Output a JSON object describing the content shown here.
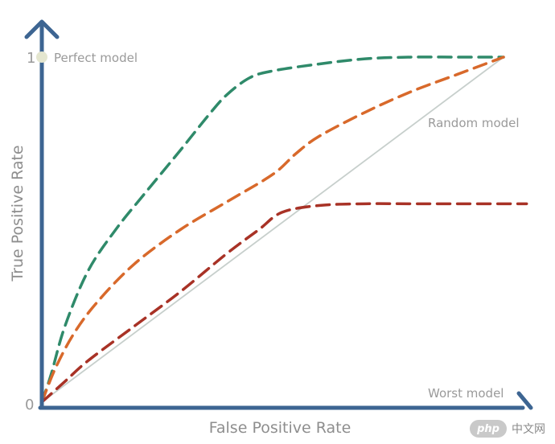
{
  "chart_data": {
    "type": "line",
    "xlabel": "False Positive Rate",
    "ylabel": "True Positive Rate",
    "xlim": [
      0,
      1
    ],
    "ylim": [
      0,
      1
    ],
    "y_ticks": [
      {
        "value": 0,
        "label": "0"
      },
      {
        "value": 1,
        "label": "1"
      }
    ],
    "annotations": {
      "perfect": {
        "label": "Perfect model",
        "x": 0,
        "y": 1
      },
      "random": {
        "label": "Random model",
        "x": 0.82,
        "y": 0.82
      },
      "worst": {
        "label": "Worst model",
        "x": 1,
        "y": 0
      }
    },
    "grid": false,
    "legend": "none",
    "series": [
      {
        "color": "#2f8a6a",
        "style": "dashed",
        "x": [
          0,
          0.02,
          0.05,
          0.1,
          0.16,
          0.22,
          0.3,
          0.36,
          0.4,
          0.45,
          0.5,
          0.6,
          0.7,
          0.8,
          0.9,
          1.0
        ],
        "y": [
          0,
          0.08,
          0.22,
          0.38,
          0.5,
          0.6,
          0.73,
          0.83,
          0.89,
          0.94,
          0.96,
          0.98,
          0.995,
          1.0,
          1.0,
          1.0
        ]
      },
      {
        "color": "#d8692b",
        "style": "dashed",
        "x": [
          0,
          0.03,
          0.07,
          0.12,
          0.2,
          0.3,
          0.4,
          0.5,
          0.55,
          0.6,
          0.7,
          0.8,
          0.9,
          1.0
        ],
        "y": [
          0,
          0.1,
          0.2,
          0.29,
          0.4,
          0.5,
          0.58,
          0.66,
          0.72,
          0.77,
          0.84,
          0.9,
          0.95,
          1.0
        ]
      },
      {
        "color": "#a83226",
        "style": "dashed",
        "x": [
          0,
          0.05,
          0.1,
          0.2,
          0.3,
          0.4,
          0.47,
          0.52,
          0.6,
          0.7,
          0.8,
          0.9,
          1.05
        ],
        "y": [
          0,
          0.06,
          0.12,
          0.22,
          0.32,
          0.43,
          0.5,
          0.55,
          0.57,
          0.575,
          0.575,
          0.575,
          0.575
        ]
      },
      {
        "color": "#c7cfcc",
        "style": "solid",
        "x": [
          0,
          1
        ],
        "y": [
          0,
          1
        ]
      }
    ]
  },
  "watermark": {
    "badge": "php",
    "text": "中文网"
  }
}
